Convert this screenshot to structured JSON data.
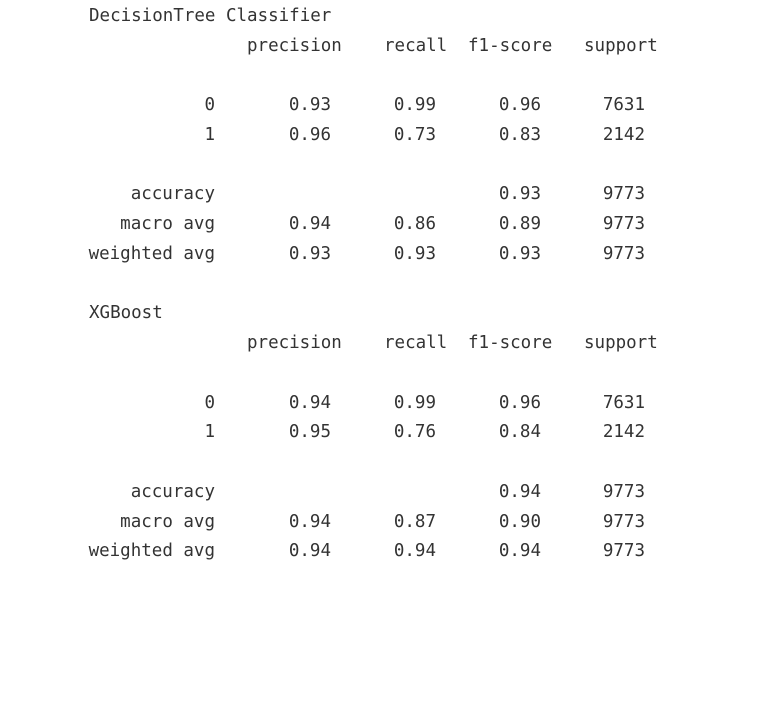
{
  "reports": [
    {
      "title": "DecisionTree Classifier",
      "headers": [
        "precision",
        "recall",
        "f1-score",
        "support"
      ],
      "rows": [
        {
          "label": "0",
          "precision": "0.93",
          "recall": "0.99",
          "f1": "0.96",
          "support": "7631"
        },
        {
          "label": "1",
          "precision": "0.96",
          "recall": "0.73",
          "f1": "0.83",
          "support": "2142"
        }
      ],
      "summary": [
        {
          "label": "accuracy",
          "precision": "",
          "recall": "",
          "f1": "0.93",
          "support": "9773"
        },
        {
          "label": "macro avg",
          "precision": "0.94",
          "recall": "0.86",
          "f1": "0.89",
          "support": "9773"
        },
        {
          "label": "weighted avg",
          "precision": "0.93",
          "recall": "0.93",
          "f1": "0.93",
          "support": "9773"
        }
      ]
    },
    {
      "title": "XGBoost",
      "headers": [
        "precision",
        "recall",
        "f1-score",
        "support"
      ],
      "rows": [
        {
          "label": "0",
          "precision": "0.94",
          "recall": "0.99",
          "f1": "0.96",
          "support": "7631"
        },
        {
          "label": "1",
          "precision": "0.95",
          "recall": "0.76",
          "f1": "0.84",
          "support": "2142"
        }
      ],
      "summary": [
        {
          "label": "accuracy",
          "precision": "",
          "recall": "",
          "f1": "0.94",
          "support": "9773"
        },
        {
          "label": "macro avg",
          "precision": "0.94",
          "recall": "0.87",
          "f1": "0.90",
          "support": "9773"
        },
        {
          "label": "weighted avg",
          "precision": "0.94",
          "recall": "0.94",
          "f1": "0.94",
          "support": "9773"
        }
      ]
    }
  ]
}
